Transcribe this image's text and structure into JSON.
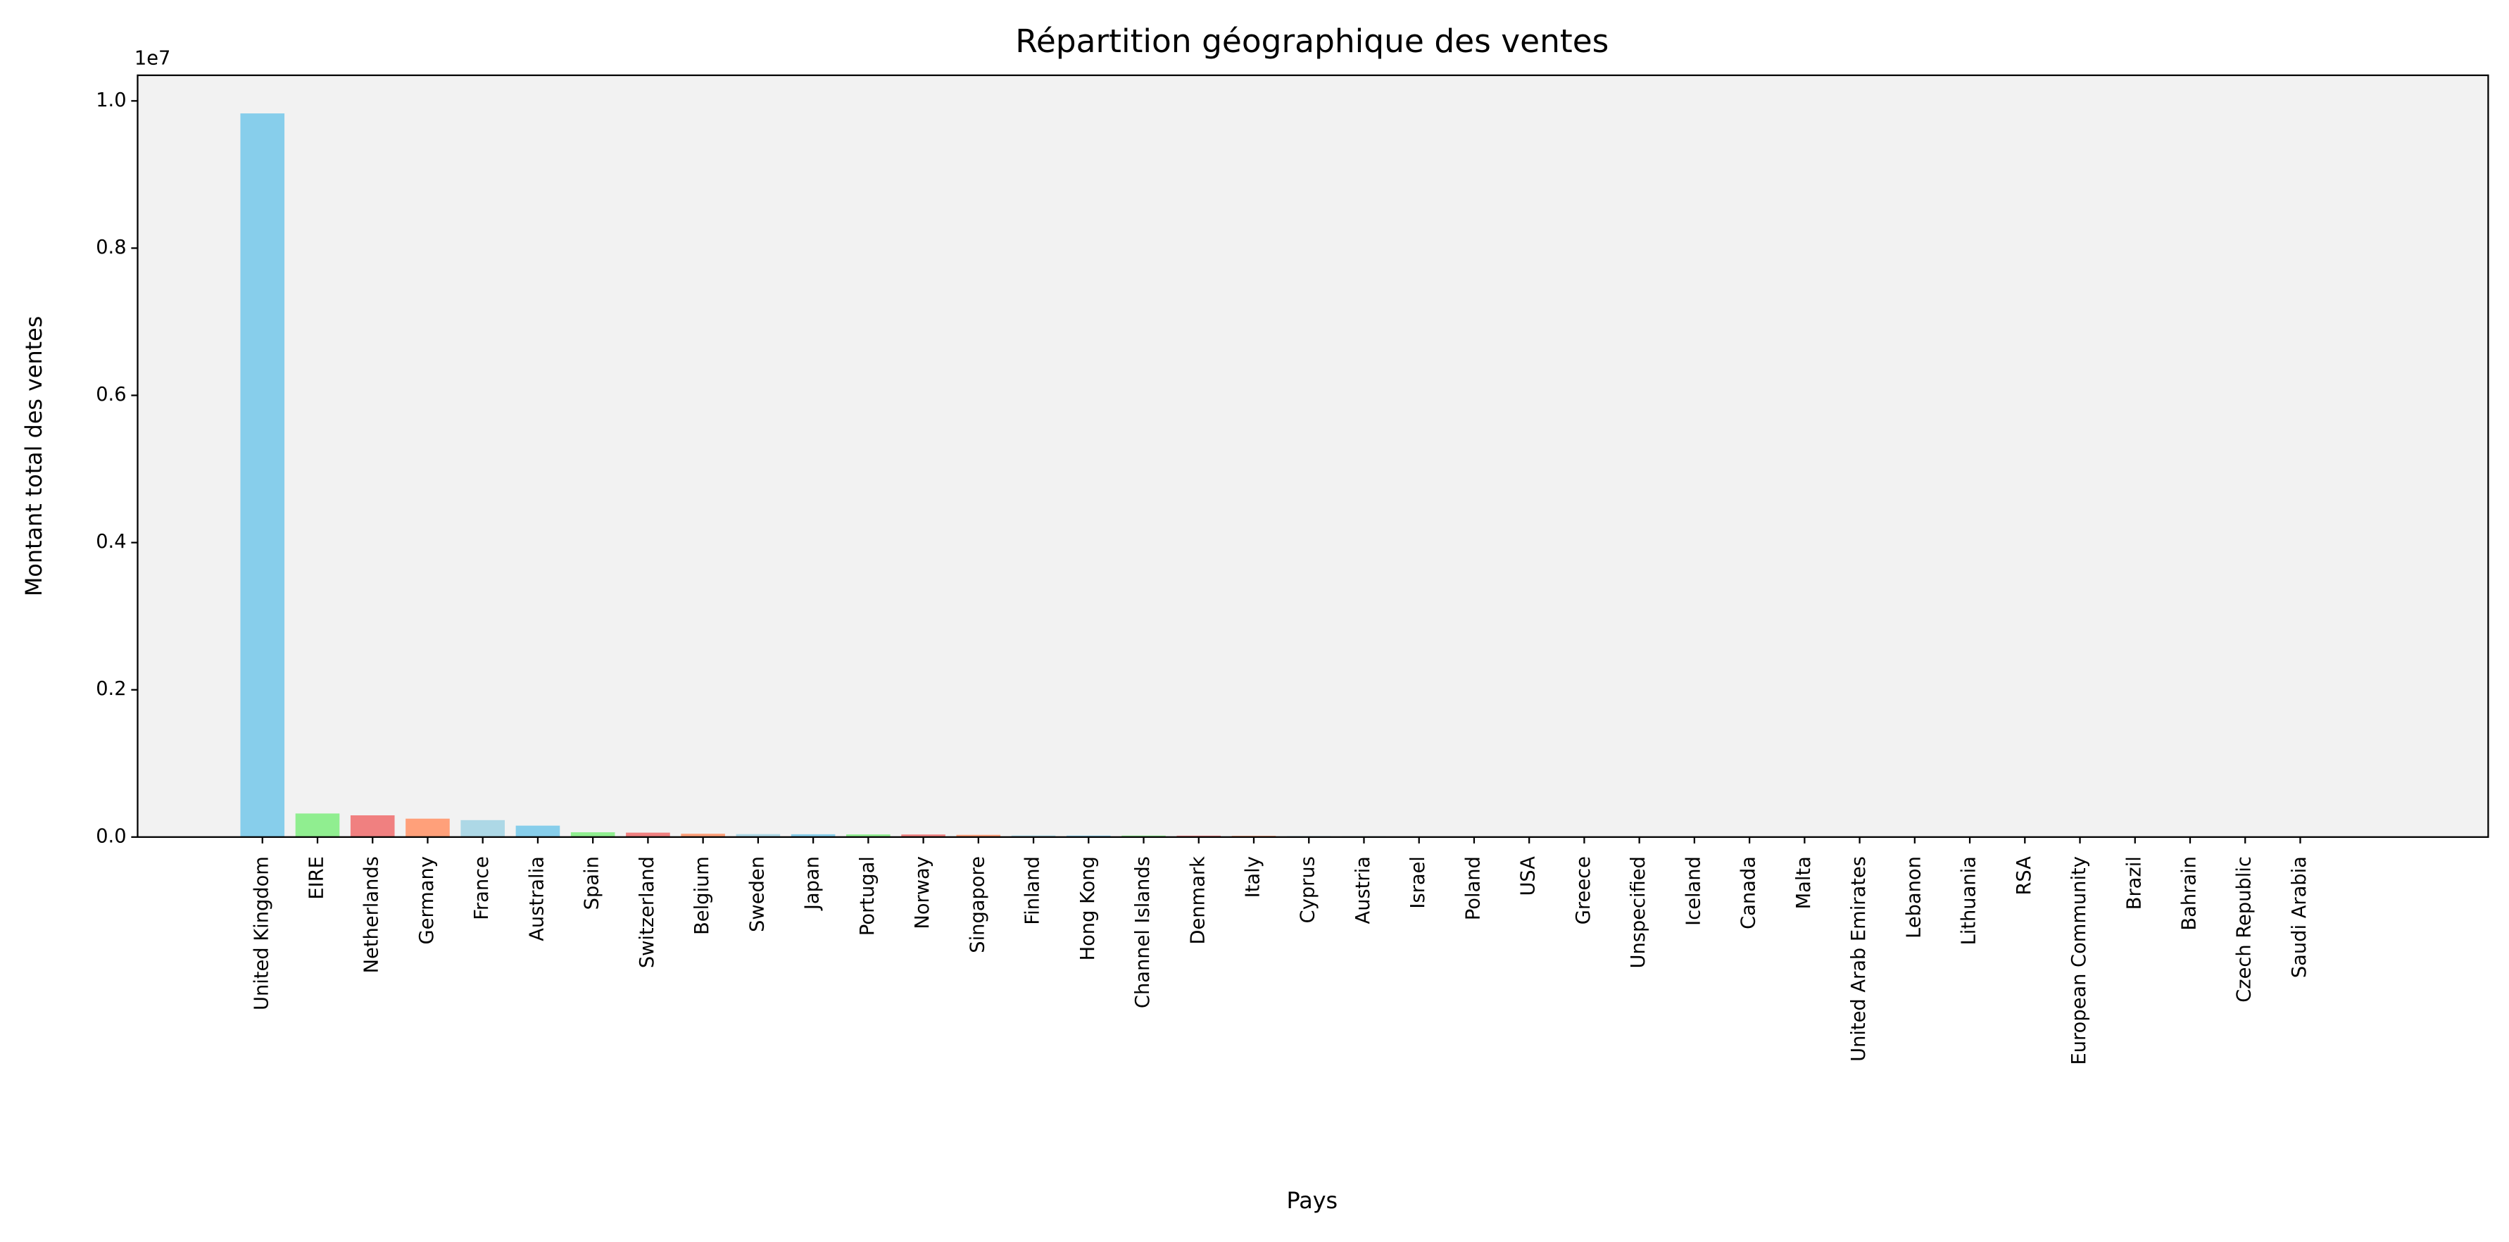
{
  "chart_data": {
    "type": "bar",
    "title": "Répartition géographique des ventes",
    "x_label": "Pays",
    "y_label": "Montant total des ventes",
    "y_offset_label": "1e7",
    "categories": [
      "United Kingdom",
      "EIRE",
      "Netherlands",
      "Germany",
      "France",
      "Australia",
      "Spain",
      "Switzerland",
      "Belgium",
      "Sweden",
      "Japan",
      "Portugal",
      "Norway",
      "Singapore",
      "Finland",
      "Hong Kong",
      "Channel Islands",
      "Denmark",
      "Italy",
      "Cyprus",
      "Austria",
      "Israel",
      "Poland",
      "USA",
      "Greece",
      "Unspecified",
      "Iceland",
      "Canada",
      "Malta",
      "United Arab Emirates",
      "Lebanon",
      "Lithuania",
      "RSA",
      "European Community",
      "Brazil",
      "Bahrain",
      "Czech Republic",
      "Saudi Arabia"
    ],
    "values": [
      9830000,
      320000,
      295000,
      250000,
      230000,
      155000,
      65000,
      60000,
      45000,
      40000,
      38000,
      36000,
      35000,
      30000,
      22000,
      20000,
      20000,
      19000,
      17000,
      13000,
      10000,
      8000,
      7200,
      5600,
      4700,
      4700,
      4300,
      3700,
      2700,
      2000,
      1700,
      1700,
      1400,
      1300,
      1100,
      750,
      700,
      130
    ],
    "colors": [
      "#87ceeb",
      "#90ee90",
      "#f08080",
      "#ffa07a",
      "#add8e6"
    ],
    "background": "#f2f2f2",
    "ylim": [
      0,
      10348000
    ],
    "yticks": [
      {
        "value": 0,
        "label": "0.0"
      },
      {
        "value": 2000000,
        "label": "0.2"
      },
      {
        "value": 4000000,
        "label": "0.4"
      },
      {
        "value": 6000000,
        "label": "0.6"
      },
      {
        "value": 8000000,
        "label": "0.8"
      },
      {
        "value": 10000000,
        "label": "1.0"
      }
    ]
  }
}
